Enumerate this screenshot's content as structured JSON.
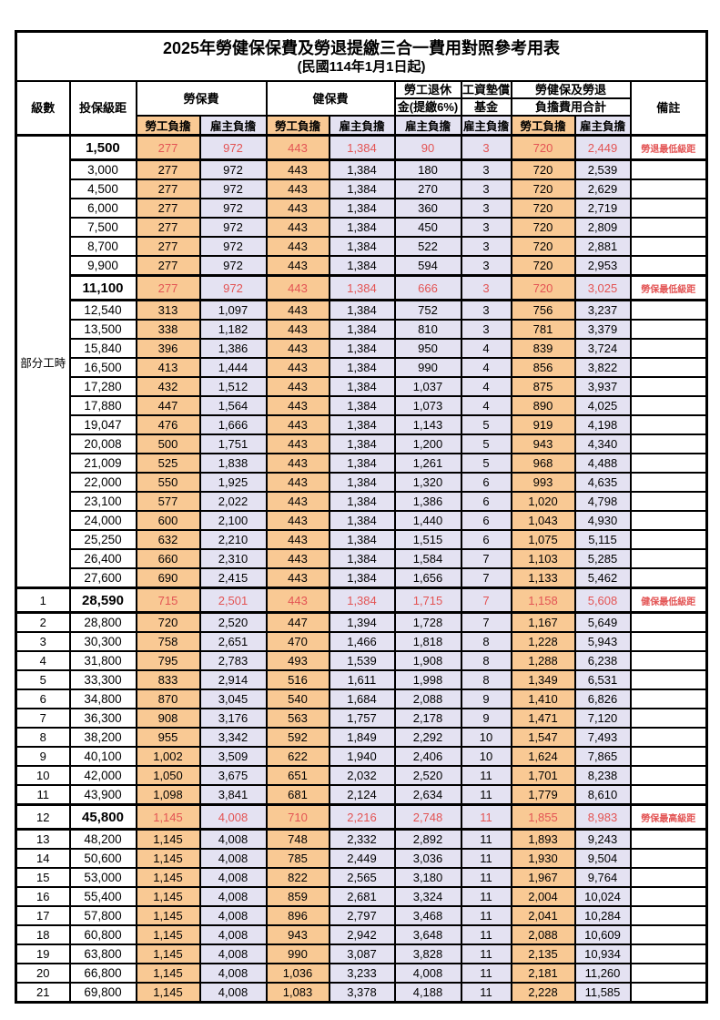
{
  "title": "2025年勞健保保費及勞退提繳三合一費用對照參考用表",
  "subtitle": "(民國114年1月1日起)",
  "header": {
    "level": "級數",
    "bracket": "投保級距",
    "labor_insurance": "勞保費",
    "health_insurance": "健保費",
    "pension_line1": "勞工退休",
    "pension_line2": "金(提繳6%)",
    "wage_fund_line1": "工資墊償",
    "wage_fund_line2": "基金",
    "total_line1": "勞健保及勞退",
    "total_line2": "負擔費用合計",
    "remark": "備註",
    "employee": "勞工負擔",
    "employer": "雇主負擔"
  },
  "part_time_label": "部分工時",
  "colors": {
    "employee_bg": "#f9c994",
    "employer_bg": "#e4e2f2",
    "highlight_red": "#e35454",
    "border_black": "#000000"
  },
  "rows": [
    {
      "bracket": "1,500",
      "values": [
        "277",
        "972",
        "443",
        "1,384",
        "90",
        "3",
        "720",
        "2,449"
      ],
      "remark": "勞退最低級距",
      "key": true
    },
    {
      "bracket": "3,000",
      "values": [
        "277",
        "972",
        "443",
        "1,384",
        "180",
        "3",
        "720",
        "2,539"
      ],
      "remark": ""
    },
    {
      "bracket": "4,500",
      "values": [
        "277",
        "972",
        "443",
        "1,384",
        "270",
        "3",
        "720",
        "2,629"
      ],
      "remark": ""
    },
    {
      "bracket": "6,000",
      "values": [
        "277",
        "972",
        "443",
        "1,384",
        "360",
        "3",
        "720",
        "2,719"
      ],
      "remark": ""
    },
    {
      "bracket": "7,500",
      "values": [
        "277",
        "972",
        "443",
        "1,384",
        "450",
        "3",
        "720",
        "2,809"
      ],
      "remark": ""
    },
    {
      "bracket": "8,700",
      "values": [
        "277",
        "972",
        "443",
        "1,384",
        "522",
        "3",
        "720",
        "2,881"
      ],
      "remark": ""
    },
    {
      "bracket": "9,900",
      "values": [
        "277",
        "972",
        "443",
        "1,384",
        "594",
        "3",
        "720",
        "2,953"
      ],
      "remark": ""
    },
    {
      "bracket": "11,100",
      "values": [
        "277",
        "972",
        "443",
        "1,384",
        "666",
        "3",
        "720",
        "3,025"
      ],
      "remark": "勞保最低級距",
      "key": true
    },
    {
      "bracket": "12,540",
      "values": [
        "313",
        "1,097",
        "443",
        "1,384",
        "752",
        "3",
        "756",
        "3,237"
      ],
      "remark": ""
    },
    {
      "bracket": "13,500",
      "values": [
        "338",
        "1,182",
        "443",
        "1,384",
        "810",
        "3",
        "781",
        "3,379"
      ],
      "remark": ""
    },
    {
      "bracket": "15,840",
      "values": [
        "396",
        "1,386",
        "443",
        "1,384",
        "950",
        "4",
        "839",
        "3,724"
      ],
      "remark": ""
    },
    {
      "bracket": "16,500",
      "values": [
        "413",
        "1,444",
        "443",
        "1,384",
        "990",
        "4",
        "856",
        "3,822"
      ],
      "remark": ""
    },
    {
      "bracket": "17,280",
      "values": [
        "432",
        "1,512",
        "443",
        "1,384",
        "1,037",
        "4",
        "875",
        "3,937"
      ],
      "remark": ""
    },
    {
      "bracket": "17,880",
      "values": [
        "447",
        "1,564",
        "443",
        "1,384",
        "1,073",
        "4",
        "890",
        "4,025"
      ],
      "remark": ""
    },
    {
      "bracket": "19,047",
      "values": [
        "476",
        "1,666",
        "443",
        "1,384",
        "1,143",
        "5",
        "919",
        "4,198"
      ],
      "remark": ""
    },
    {
      "bracket": "20,008",
      "values": [
        "500",
        "1,751",
        "443",
        "1,384",
        "1,200",
        "5",
        "943",
        "4,340"
      ],
      "remark": ""
    },
    {
      "bracket": "21,009",
      "values": [
        "525",
        "1,838",
        "443",
        "1,384",
        "1,261",
        "5",
        "968",
        "4,488"
      ],
      "remark": ""
    },
    {
      "bracket": "22,000",
      "values": [
        "550",
        "1,925",
        "443",
        "1,384",
        "1,320",
        "6",
        "993",
        "4,635"
      ],
      "remark": ""
    },
    {
      "bracket": "23,100",
      "values": [
        "577",
        "2,022",
        "443",
        "1,384",
        "1,386",
        "6",
        "1,020",
        "4,798"
      ],
      "remark": ""
    },
    {
      "bracket": "24,000",
      "values": [
        "600",
        "2,100",
        "443",
        "1,384",
        "1,440",
        "6",
        "1,043",
        "4,930"
      ],
      "remark": ""
    },
    {
      "bracket": "25,250",
      "values": [
        "632",
        "2,210",
        "443",
        "1,384",
        "1,515",
        "6",
        "1,075",
        "5,115"
      ],
      "remark": ""
    },
    {
      "bracket": "26,400",
      "values": [
        "660",
        "2,310",
        "443",
        "1,384",
        "1,584",
        "7",
        "1,103",
        "5,285"
      ],
      "remark": ""
    },
    {
      "bracket": "27,600",
      "values": [
        "690",
        "2,415",
        "443",
        "1,384",
        "1,656",
        "7",
        "1,133",
        "5,462"
      ],
      "remark": ""
    },
    {
      "level": "1",
      "bracket": "28,590",
      "values": [
        "715",
        "2,501",
        "443",
        "1,384",
        "1,715",
        "7",
        "1,158",
        "5,608"
      ],
      "remark": "健保最低級距",
      "key": true
    },
    {
      "level": "2",
      "bracket": "28,800",
      "values": [
        "720",
        "2,520",
        "447",
        "1,394",
        "1,728",
        "7",
        "1,167",
        "5,649"
      ],
      "remark": ""
    },
    {
      "level": "3",
      "bracket": "30,300",
      "values": [
        "758",
        "2,651",
        "470",
        "1,466",
        "1,818",
        "8",
        "1,228",
        "5,943"
      ],
      "remark": ""
    },
    {
      "level": "4",
      "bracket": "31,800",
      "values": [
        "795",
        "2,783",
        "493",
        "1,539",
        "1,908",
        "8",
        "1,288",
        "6,238"
      ],
      "remark": ""
    },
    {
      "level": "5",
      "bracket": "33,300",
      "values": [
        "833",
        "2,914",
        "516",
        "1,611",
        "1,998",
        "8",
        "1,349",
        "6,531"
      ],
      "remark": ""
    },
    {
      "level": "6",
      "bracket": "34,800",
      "values": [
        "870",
        "3,045",
        "540",
        "1,684",
        "2,088",
        "9",
        "1,410",
        "6,826"
      ],
      "remark": ""
    },
    {
      "level": "7",
      "bracket": "36,300",
      "values": [
        "908",
        "3,176",
        "563",
        "1,757",
        "2,178",
        "9",
        "1,471",
        "7,120"
      ],
      "remark": ""
    },
    {
      "level": "8",
      "bracket": "38,200",
      "values": [
        "955",
        "3,342",
        "592",
        "1,849",
        "2,292",
        "10",
        "1,547",
        "7,493"
      ],
      "remark": ""
    },
    {
      "level": "9",
      "bracket": "40,100",
      "values": [
        "1,002",
        "3,509",
        "622",
        "1,940",
        "2,406",
        "10",
        "1,624",
        "7,865"
      ],
      "remark": ""
    },
    {
      "level": "10",
      "bracket": "42,000",
      "values": [
        "1,050",
        "3,675",
        "651",
        "2,032",
        "2,520",
        "11",
        "1,701",
        "8,238"
      ],
      "remark": ""
    },
    {
      "level": "11",
      "bracket": "43,900",
      "values": [
        "1,098",
        "3,841",
        "681",
        "2,124",
        "2,634",
        "11",
        "1,779",
        "8,610"
      ],
      "remark": ""
    },
    {
      "level": "12",
      "bracket": "45,800",
      "values": [
        "1,145",
        "4,008",
        "710",
        "2,216",
        "2,748",
        "11",
        "1,855",
        "8,983"
      ],
      "remark": "勞保最高級距",
      "key": true
    },
    {
      "level": "13",
      "bracket": "48,200",
      "values": [
        "1,145",
        "4,008",
        "748",
        "2,332",
        "2,892",
        "11",
        "1,893",
        "9,243"
      ],
      "remark": ""
    },
    {
      "level": "14",
      "bracket": "50,600",
      "values": [
        "1,145",
        "4,008",
        "785",
        "2,449",
        "3,036",
        "11",
        "1,930",
        "9,504"
      ],
      "remark": ""
    },
    {
      "level": "15",
      "bracket": "53,000",
      "values": [
        "1,145",
        "4,008",
        "822",
        "2,565",
        "3,180",
        "11",
        "1,967",
        "9,764"
      ],
      "remark": ""
    },
    {
      "level": "16",
      "bracket": "55,400",
      "values": [
        "1,145",
        "4,008",
        "859",
        "2,681",
        "3,324",
        "11",
        "2,004",
        "10,024"
      ],
      "remark": ""
    },
    {
      "level": "17",
      "bracket": "57,800",
      "values": [
        "1,145",
        "4,008",
        "896",
        "2,797",
        "3,468",
        "11",
        "2,041",
        "10,284"
      ],
      "remark": ""
    },
    {
      "level": "18",
      "bracket": "60,800",
      "values": [
        "1,145",
        "4,008",
        "943",
        "2,942",
        "3,648",
        "11",
        "2,088",
        "10,609"
      ],
      "remark": ""
    },
    {
      "level": "19",
      "bracket": "63,800",
      "values": [
        "1,145",
        "4,008",
        "990",
        "3,087",
        "3,828",
        "11",
        "2,135",
        "10,934"
      ],
      "remark": ""
    },
    {
      "level": "20",
      "bracket": "66,800",
      "values": [
        "1,145",
        "4,008",
        "1,036",
        "3,233",
        "4,008",
        "11",
        "2,181",
        "11,260"
      ],
      "remark": ""
    },
    {
      "level": "21",
      "bracket": "69,800",
      "values": [
        "1,145",
        "4,008",
        "1,083",
        "3,378",
        "4,188",
        "11",
        "2,228",
        "11,585"
      ],
      "remark": ""
    }
  ]
}
